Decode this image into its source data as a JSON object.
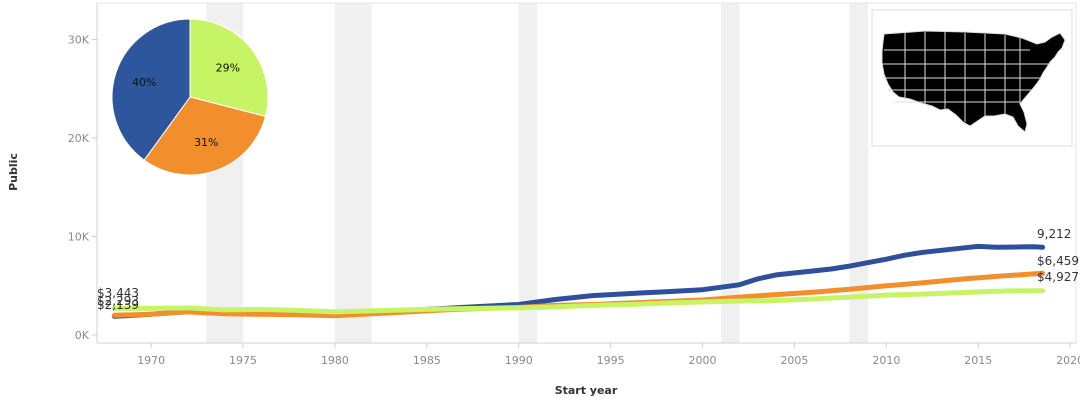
{
  "chart_data": [
    {
      "type": "line",
      "xlabel": "Start year",
      "ylabel": "Public",
      "xlim": [
        1967,
        2020
      ],
      "ylim": [
        0,
        30000
      ],
      "x_ticks": [
        "1970",
        "1975",
        "1980",
        "1985",
        "1990",
        "1995",
        "2000",
        "2005",
        "2010",
        "2015",
        "2020"
      ],
      "y_ticks": [
        "0K",
        "10K",
        "20K",
        "30K"
      ],
      "grid": false,
      "recession_bands": [
        [
          1973,
          1975
        ],
        [
          1980,
          1982
        ],
        [
          1990,
          1991
        ],
        [
          2001,
          2002
        ],
        [
          2008,
          2009
        ]
      ],
      "series": [
        {
          "color": "#2e4f9c",
          "start_label": "$2,293",
          "end_label": "9,212",
          "points": [
            [
              1968,
              1900
            ],
            [
              1970,
              2100
            ],
            [
              1972,
              2400
            ],
            [
              1974,
              2200
            ],
            [
              1976,
              2200
            ],
            [
              1978,
              2100
            ],
            [
              1980,
              2000
            ],
            [
              1982,
              2200
            ],
            [
              1984,
              2500
            ],
            [
              1986,
              2700
            ],
            [
              1988,
              2900
            ],
            [
              1990,
              3100
            ],
            [
              1992,
              3600
            ],
            [
              1994,
              4000
            ],
            [
              1996,
              4200
            ],
            [
              1998,
              4400
            ],
            [
              2000,
              4600
            ],
            [
              2002,
              5100
            ],
            [
              2003,
              5700
            ],
            [
              2004,
              6100
            ],
            [
              2006,
              6500
            ],
            [
              2007,
              6700
            ],
            [
              2008,
              7000
            ],
            [
              2010,
              7700
            ],
            [
              2011,
              8100
            ],
            [
              2012,
              8400
            ],
            [
              2014,
              8800
            ],
            [
              2015,
              9000
            ],
            [
              2016,
              8900
            ],
            [
              2018,
              8950
            ],
            [
              2018.5,
              8900
            ]
          ]
        },
        {
          "color": "#f28e2b",
          "start_label": "$2,139",
          "end_label": "$6,459",
          "points": [
            [
              1968,
              2000
            ],
            [
              1970,
              2100
            ],
            [
              1972,
              2350
            ],
            [
              1974,
              2150
            ],
            [
              1976,
              2100
            ],
            [
              1978,
              2050
            ],
            [
              1980,
              1950
            ],
            [
              1982,
              2150
            ],
            [
              1984,
              2350
            ],
            [
              1986,
              2550
            ],
            [
              1988,
              2700
            ],
            [
              1990,
              2800
            ],
            [
              1992,
              3000
            ],
            [
              1994,
              3100
            ],
            [
              1996,
              3250
            ],
            [
              1998,
              3400
            ],
            [
              2000,
              3550
            ],
            [
              2002,
              3850
            ],
            [
              2004,
              4100
            ],
            [
              2006,
              4350
            ],
            [
              2008,
              4650
            ],
            [
              2010,
              5000
            ],
            [
              2012,
              5300
            ],
            [
              2014,
              5650
            ],
            [
              2016,
              5950
            ],
            [
              2018,
              6200
            ],
            [
              2018.5,
              6250
            ]
          ]
        },
        {
          "color": "#c7f464",
          "start_label": "$3,443",
          "end_label": "$4,927",
          "points": [
            [
              1968,
              2700
            ],
            [
              1970,
              2700
            ],
            [
              1972,
              2750
            ],
            [
              1974,
              2550
            ],
            [
              1976,
              2600
            ],
            [
              1978,
              2500
            ],
            [
              1980,
              2350
            ],
            [
              1982,
              2450
            ],
            [
              1984,
              2550
            ],
            [
              1986,
              2650
            ],
            [
              1988,
              2700
            ],
            [
              1990,
              2750
            ],
            [
              1992,
              2850
            ],
            [
              1994,
              3000
            ],
            [
              1996,
              3100
            ],
            [
              1998,
              3250
            ],
            [
              2000,
              3350
            ],
            [
              2002,
              3450
            ],
            [
              2004,
              3500
            ],
            [
              2006,
              3650
            ],
            [
              2008,
              3850
            ],
            [
              2010,
              4050
            ],
            [
              2012,
              4150
            ],
            [
              2014,
              4300
            ],
            [
              2016,
              4450
            ],
            [
              2018,
              4500
            ],
            [
              2018.5,
              4500
            ]
          ]
        }
      ]
    },
    {
      "type": "pie",
      "slices": [
        {
          "label": "29%",
          "value": 29,
          "color": "#c7f464"
        },
        {
          "label": "31%",
          "value": 31,
          "color": "#f28e2b"
        },
        {
          "label": "40%",
          "value": 40,
          "color": "#2e569c"
        }
      ]
    }
  ],
  "map_inset": {
    "region": "United States",
    "fill": "#000000",
    "border": "#dddddd"
  }
}
